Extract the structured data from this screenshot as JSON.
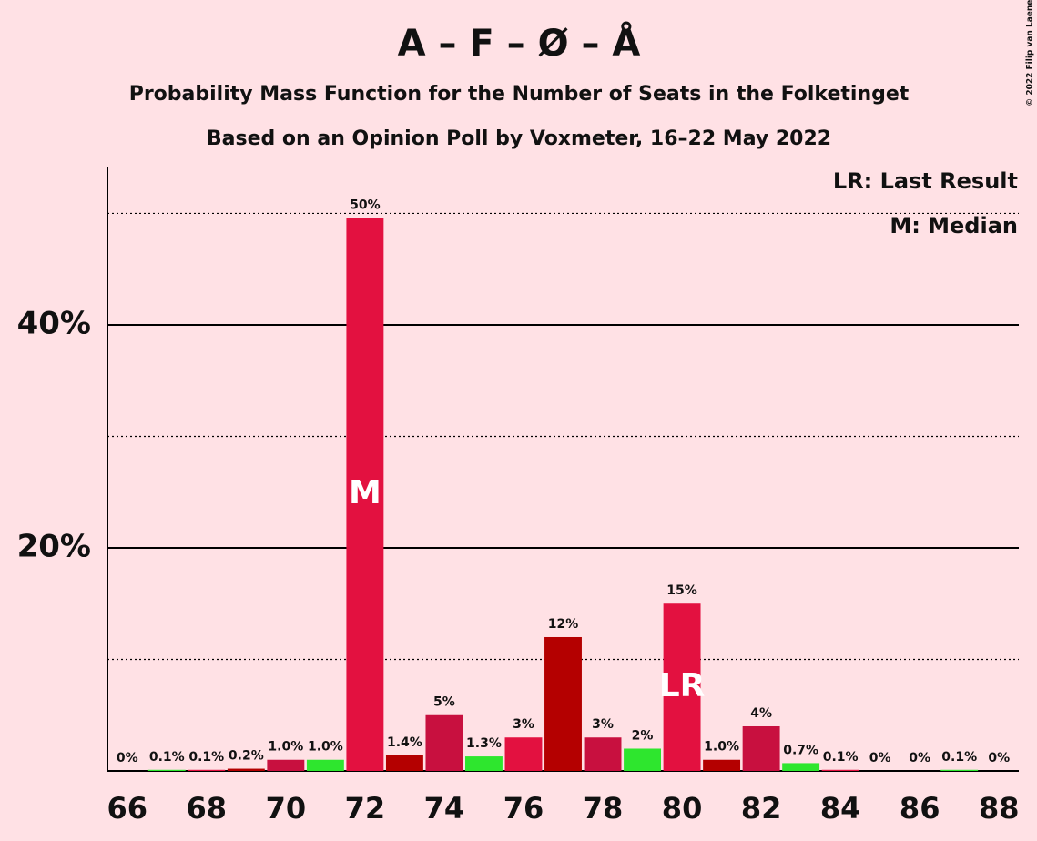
{
  "chart_data": {
    "type": "bar",
    "title": "A – F – Ø – Å",
    "subtitle": "Probability Mass Function for the Number of Seats in the Folketinget",
    "subtitle2": "Based on an Opinion Poll by Voxmeter, 16–22 May 2022",
    "copyright": "© 2022 Filip van Laenen",
    "x": [
      66,
      67,
      68,
      69,
      70,
      71,
      72,
      73,
      74,
      75,
      76,
      77,
      78,
      79,
      80,
      81,
      82,
      83,
      84,
      85,
      86,
      87,
      88
    ],
    "values": [
      0,
      0.1,
      0.1,
      0.2,
      1.0,
      1.0,
      49.6,
      1.4,
      5,
      1.3,
      3,
      12,
      3,
      2,
      15,
      1.0,
      4,
      0.7,
      0.1,
      0,
      0,
      0.1,
      0
    ],
    "value_labels": [
      "0%",
      "0.1%",
      "0.1%",
      "0.2%",
      "1.0%",
      "1.0%",
      "50%",
      "1.4%",
      "5%",
      "1.3%",
      "3%",
      "12%",
      "3%",
      "2%",
      "15%",
      "1.0%",
      "4%",
      "0.7%",
      "0.1%",
      "0%",
      "0%",
      "0.1%",
      "0%"
    ],
    "colors": [
      "#c8103f",
      "#2ee62e",
      "#e31140",
      "#b40000",
      "#c8103f",
      "#2ee62e",
      "#e31140",
      "#b40000",
      "#c8103f",
      "#2ee62e",
      "#e31140",
      "#b40000",
      "#c8103f",
      "#2ee62e",
      "#e31140",
      "#b40000",
      "#c8103f",
      "#2ee62e",
      "#e31140",
      "#b40000",
      "#c8103f",
      "#2ee62e",
      "#e31140"
    ],
    "xlim": [
      65.5,
      88.5
    ],
    "xticks": [
      66,
      68,
      70,
      72,
      74,
      76,
      78,
      80,
      82,
      84,
      86,
      88
    ],
    "ylim": [
      0,
      54.2
    ],
    "yticks": [
      {
        "value": 20,
        "label": "20%"
      },
      {
        "value": 40,
        "label": "40%"
      }
    ],
    "minor_yticks": [
      10,
      30,
      50
    ],
    "annotations": [
      {
        "x": 72,
        "text": "M"
      },
      {
        "x": 80,
        "text": "LR"
      }
    ],
    "legend_notes": [
      "LR: Last Result",
      "M: Median"
    ]
  }
}
